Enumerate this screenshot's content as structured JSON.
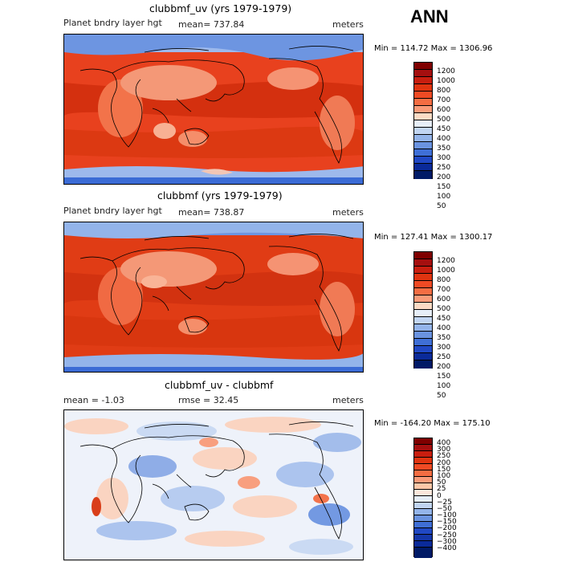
{
  "season": "ANN",
  "panels": [
    {
      "title": "clubbmf_uv (yrs 1979-1979)",
      "left": "Planet bndry layer hgt",
      "mean": "mean= 737.84",
      "units": "meters",
      "minmax": "Min = 114.72 Max = 1306.96",
      "levels": [
        "1200",
        "1000",
        "800",
        "700",
        "600",
        "500",
        "450",
        "400",
        "350",
        "300",
        "250",
        "200",
        "150",
        "100",
        "50"
      ],
      "colors": [
        "#7f0000",
        "#a50f0f",
        "#c81e0f",
        "#e03410",
        "#ef4a24",
        "#f46d43",
        "#f99b79",
        "#fcdbc5",
        "#e6eef8",
        "#c1d5f2",
        "#93b4ea",
        "#6a93e0",
        "#3f6fd6",
        "#2048c4",
        "#0a2a99",
        "#001a66"
      ]
    },
    {
      "title": "clubbmf (yrs 1979-1979)",
      "left": "Planet bndry layer hgt",
      "mean": "mean= 738.87",
      "units": "meters",
      "minmax": "Min = 127.41 Max = 1300.17",
      "levels": [
        "1200",
        "1000",
        "800",
        "700",
        "600",
        "500",
        "450",
        "400",
        "350",
        "300",
        "250",
        "200",
        "150",
        "100",
        "50"
      ],
      "colors": [
        "#7f0000",
        "#a50f0f",
        "#c81e0f",
        "#e03410",
        "#ef4a24",
        "#f46d43",
        "#f99b79",
        "#fcdbc5",
        "#e6eef8",
        "#c1d5f2",
        "#93b4ea",
        "#6a93e0",
        "#3f6fd6",
        "#2048c4",
        "#0a2a99",
        "#001a66"
      ]
    },
    {
      "title": "clubbmf_uv - clubbmf",
      "left": "mean =  -1.03",
      "rmse": "rmse =  32.45",
      "units": "meters",
      "minmax": "Min = -164.20 Max = 175.10",
      "levels": [
        "400",
        "300",
        "250",
        "200",
        "150",
        "100",
        "50",
        "25",
        "0",
        "−25",
        "−50",
        "−100",
        "−150",
        "−200",
        "−250",
        "−300",
        "−400"
      ],
      "colors": [
        "#7f0000",
        "#a50f0f",
        "#c81e0f",
        "#e03410",
        "#ef4a24",
        "#f46d43",
        "#f99b79",
        "#fcc7a8",
        "#fde8dc",
        "#e6eef8",
        "#c1d5f2",
        "#93b4ea",
        "#6a93e0",
        "#3f6fd6",
        "#2048c4",
        "#1436a8",
        "#0a2a99",
        "#001a66"
      ]
    }
  ]
}
